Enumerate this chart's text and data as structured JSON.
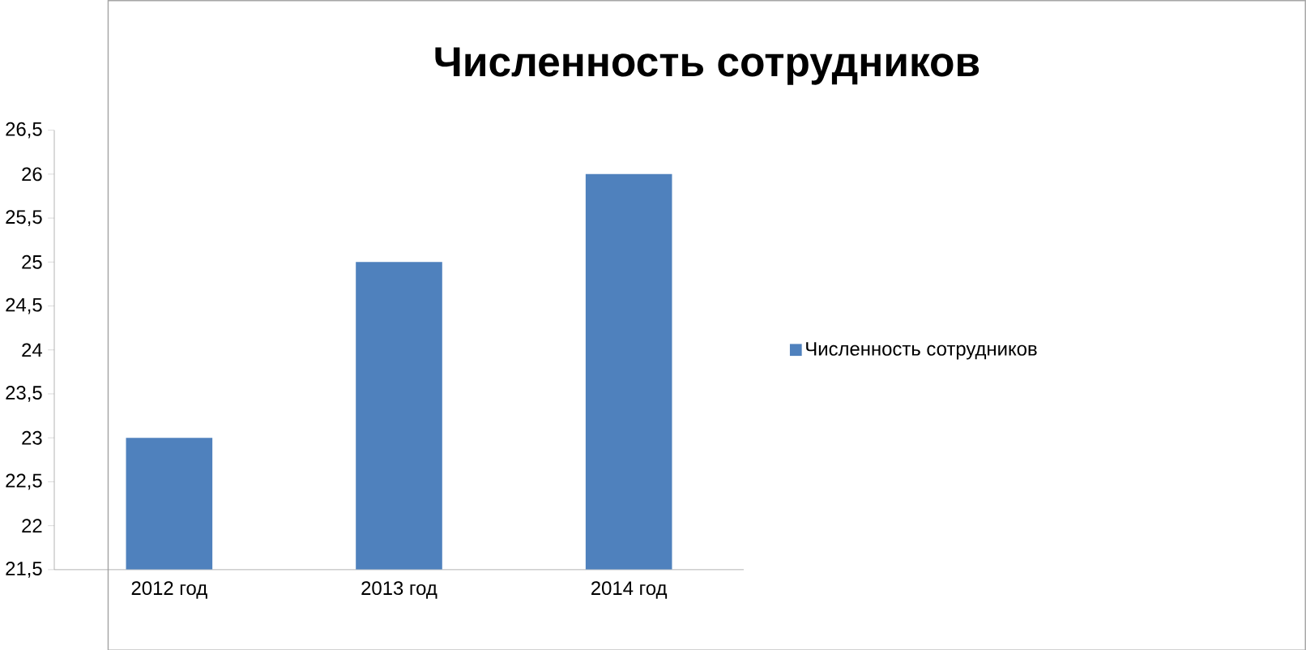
{
  "chart_data": {
    "type": "bar",
    "title": "Численность сотрудников",
    "categories": [
      "2012 год",
      "2013 год",
      "2014 год"
    ],
    "series": [
      {
        "name": "Численность сотрудников",
        "color": "#4f81bd",
        "values": [
          23,
          25,
          26
        ]
      }
    ],
    "ylim": [
      21.5,
      26.5
    ],
    "yticks": [
      {
        "value": 21.5,
        "label": "21,5"
      },
      22,
      {
        "value": 22.5,
        "label": "22,5"
      },
      23,
      {
        "value": 23.5,
        "label": "23,5"
      },
      24,
      {
        "value": 24.5,
        "label": "24,5"
      },
      25,
      {
        "value": 25.5,
        "label": "25,5"
      },
      26,
      {
        "value": 26.5,
        "label": "26,5"
      }
    ],
    "grid": false,
    "legend": "right"
  }
}
